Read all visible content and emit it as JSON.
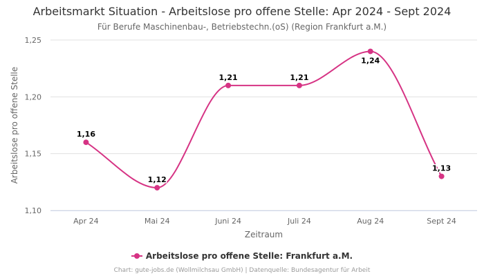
{
  "title": "Arbeitsmarkt Situation - Arbeitslose pro offene Stelle: Apr 2024 - Sept 2024",
  "subtitle": "Für Berufe Maschinenbau-, Betriebstechn.(oS) (Region Frankfurt a.M.)",
  "credits": "Chart: gute-jobs.de (Wollmilchsau GmbH) | Datenquelle: Bundesagentur für Arbeit",
  "colors": {
    "series": "#d63384",
    "grid": "#e0e0e0",
    "axis": "#ccd6eb"
  },
  "chart_data": {
    "type": "line",
    "title": "Arbeitsmarkt Situation - Arbeitslose pro offene Stelle: Apr 2024 - Sept 2024",
    "subtitle": "Für Berufe Maschinenbau-, Betriebstechn.(oS) (Region Frankfurt a.M.)",
    "xlabel": "Zeitraum",
    "ylabel": "Arbeitslose pro offene Stelle",
    "categories": [
      "Apr 24",
      "Mai 24",
      "Juni 24",
      "Juli 24",
      "Aug 24",
      "Sept 24"
    ],
    "series": [
      {
        "name": "Arbeitslose pro offene Stelle: Frankfurt a.M.",
        "values": [
          1.16,
          1.12,
          1.21,
          1.21,
          1.24,
          1.13
        ],
        "labels": [
          "1,16",
          "1,12",
          "1,21",
          "1,21",
          "1,24",
          "1,13"
        ],
        "label_positions": [
          "above",
          "above",
          "above",
          "above",
          "below",
          "above"
        ]
      }
    ],
    "ylim": [
      1.1,
      1.25
    ],
    "yticks": [
      1.1,
      1.15,
      1.2,
      1.25
    ],
    "ytick_labels": [
      "1,10",
      "1,15",
      "1,20",
      "1,25"
    ],
    "grid": true,
    "legend": "bottom-center"
  }
}
